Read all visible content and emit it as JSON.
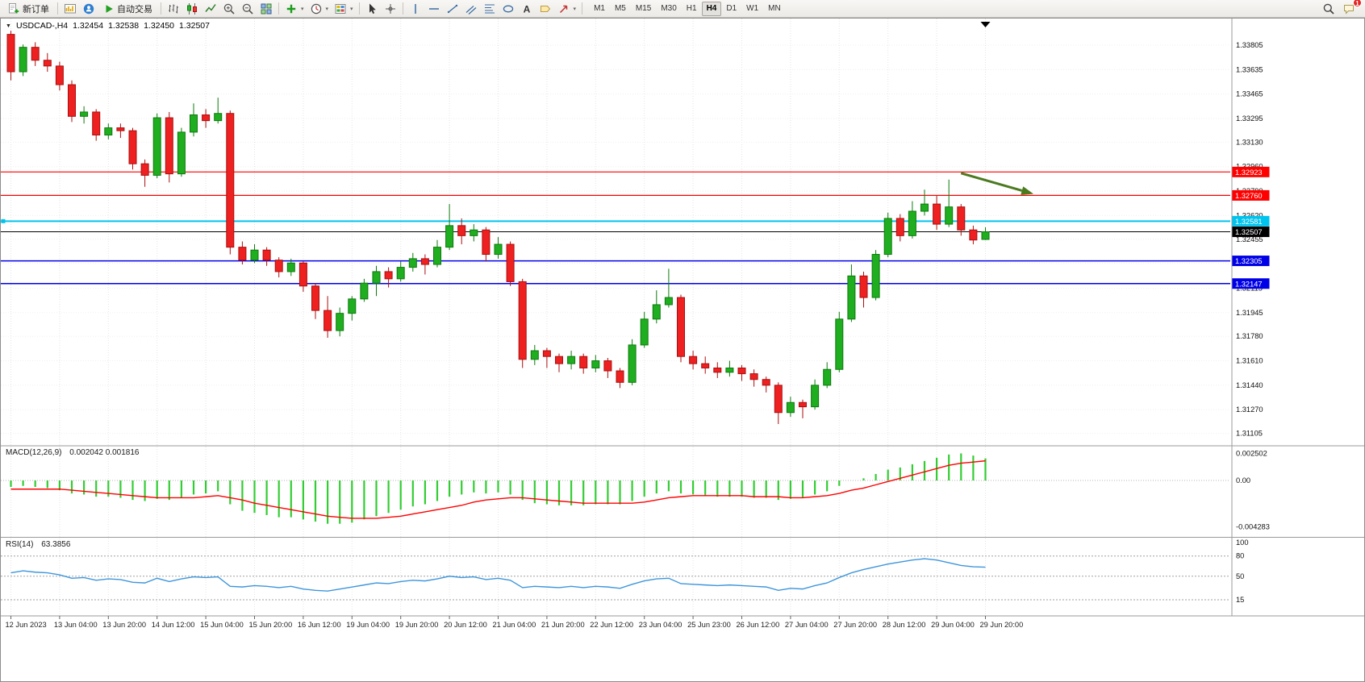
{
  "toolbar": {
    "new_order_label": "新订单",
    "auto_trading_label": "自动交易",
    "timeframes": [
      "M1",
      "M5",
      "M15",
      "M30",
      "H1",
      "H4",
      "D1",
      "W1",
      "MN"
    ],
    "active_timeframe": "H4",
    "notification_badge": "1"
  },
  "chart_header": {
    "symbol_period": "USDCAD-,H4",
    "open": "1.32454",
    "high": "1.32538",
    "low": "1.32450",
    "close": "1.32507"
  },
  "indicator_labels": {
    "macd": "MACD(12,26,9)",
    "macd_values": "0.002042 0.001816",
    "rsi": "RSI(14)",
    "rsi_value": "63.3856"
  },
  "chart_data": [
    {
      "type": "candlestick",
      "title": "USDCAD- H4",
      "x_labels": [
        "12 Jun 2023",
        "13 Jun 04:00",
        "13 Jun 20:00",
        "14 Jun 12:00",
        "15 Jun 04:00",
        "15 Jun 20:00",
        "16 Jun 12:00",
        "19 Jun 04:00",
        "19 Jun 20:00",
        "20 Jun 12:00",
        "21 Jun 04:00",
        "21 Jun 20:00",
        "22 Jun 12:00",
        "23 Jun 04:00",
        "25 Jun 23:00",
        "26 Jun 12:00",
        "27 Jun 04:00",
        "27 Jun 20:00",
        "28 Jun 12:00",
        "29 Jun 04:00",
        "29 Jun 20:00"
      ],
      "candles_per_label": 4,
      "y_axis": {
        "min": 1.3103,
        "max": 1.3399,
        "ticks": [
          1.33805,
          1.33635,
          1.33465,
          1.33295,
          1.3313,
          1.3296,
          1.3279,
          1.3262,
          1.32455,
          1.32285,
          1.32115,
          1.31945,
          1.3178,
          1.3161,
          1.3144,
          1.3127,
          1.31105
        ]
      },
      "hlines": [
        {
          "price": 1.32923,
          "label": "1.32923",
          "color": "#FF0000",
          "width": 1.2
        },
        {
          "price": 1.3276,
          "label": "1.32760",
          "color": "#FF0000",
          "width": 1.2
        },
        {
          "price": 1.32581,
          "label": "1.32581",
          "color": "#00C4EE",
          "width": 2,
          "anchor": true
        },
        {
          "price": 1.32507,
          "label": "1.32507",
          "color": "#000000",
          "width": 1
        },
        {
          "price": 1.32305,
          "label": "1.32305",
          "color": "#0000E6",
          "width": 1.5
        },
        {
          "price": 1.32147,
          "label": "1.32147",
          "color": "#0000E6",
          "width": 1.5
        }
      ],
      "arrow": {
        "x1_frac": 0.781,
        "price1": 1.32915,
        "x2_frac": 0.84,
        "price2": 1.3277,
        "color": "#4B7A1F"
      },
      "colors": {
        "up": "#1FAE1F",
        "up_stroke": "#0C7A0C",
        "down": "#EE2020",
        "down_stroke": "#AA0F0F",
        "grid": "#E4E4E4",
        "bid": "#000000"
      },
      "candles": [
        [
          1.3388,
          1.33905,
          1.3356,
          1.3362
        ],
        [
          1.3362,
          1.3381,
          1.3359,
          1.3379
        ],
        [
          1.3379,
          1.33825,
          1.3366,
          1.337
        ],
        [
          1.337,
          1.3375,
          1.3362,
          1.3366
        ],
        [
          1.3366,
          1.3369,
          1.3349,
          1.3353
        ],
        [
          1.3353,
          1.3356,
          1.3327,
          1.3331
        ],
        [
          1.3331,
          1.3338,
          1.3326,
          1.3334
        ],
        [
          1.3334,
          1.3336,
          1.3314,
          1.3318
        ],
        [
          1.3318,
          1.3326,
          1.3315,
          1.3323
        ],
        [
          1.3323,
          1.3326,
          1.3316,
          1.3321
        ],
        [
          1.3321,
          1.3323,
          1.3294,
          1.3298
        ],
        [
          1.3298,
          1.3301,
          1.3282,
          1.329
        ],
        [
          1.329,
          1.3333,
          1.3288,
          1.333
        ],
        [
          1.333,
          1.3334,
          1.3285,
          1.3291
        ],
        [
          1.3291,
          1.3323,
          1.3289,
          1.332
        ],
        [
          1.332,
          1.334,
          1.3317,
          1.3332
        ],
        [
          1.3332,
          1.3336,
          1.3323,
          1.3328
        ],
        [
          1.3328,
          1.3344,
          1.3326,
          1.3333
        ],
        [
          1.3333,
          1.3335,
          1.3235,
          1.324
        ],
        [
          1.324,
          1.3244,
          1.3228,
          1.3231
        ],
        [
          1.3231,
          1.3242,
          1.3229,
          1.3238
        ],
        [
          1.3238,
          1.324,
          1.3227,
          1.3231
        ],
        [
          1.3231,
          1.3233,
          1.3219,
          1.3223
        ],
        [
          1.3223,
          1.3232,
          1.322,
          1.3229
        ],
        [
          1.3229,
          1.323,
          1.3209,
          1.3213
        ],
        [
          1.3213,
          1.3215,
          1.319,
          1.3196
        ],
        [
          1.3196,
          1.3206,
          1.3177,
          1.3182
        ],
        [
          1.3182,
          1.3198,
          1.3178,
          1.3194
        ],
        [
          1.3194,
          1.3206,
          1.3189,
          1.3204
        ],
        [
          1.3204,
          1.3218,
          1.3202,
          1.3215
        ],
        [
          1.3215,
          1.3227,
          1.3206,
          1.3223
        ],
        [
          1.3223,
          1.3226,
          1.3212,
          1.3218
        ],
        [
          1.3218,
          1.323,
          1.3216,
          1.3226
        ],
        [
          1.3226,
          1.3236,
          1.3223,
          1.3232
        ],
        [
          1.3232,
          1.3235,
          1.3221,
          1.3228
        ],
        [
          1.3228,
          1.3245,
          1.3226,
          1.324
        ],
        [
          1.324,
          1.327,
          1.3238,
          1.3255
        ],
        [
          1.3255,
          1.326,
          1.3242,
          1.3248
        ],
        [
          1.3248,
          1.3256,
          1.3244,
          1.3252
        ],
        [
          1.3252,
          1.3254,
          1.323,
          1.3235
        ],
        [
          1.3235,
          1.3247,
          1.3232,
          1.3242
        ],
        [
          1.3242,
          1.3244,
          1.3213,
          1.3216
        ],
        [
          1.3216,
          1.3218,
          1.3156,
          1.3162
        ],
        [
          1.3162,
          1.3172,
          1.3158,
          1.3168
        ],
        [
          1.3168,
          1.317,
          1.3156,
          1.3164
        ],
        [
          1.3164,
          1.3166,
          1.3153,
          1.3159
        ],
        [
          1.3159,
          1.3168,
          1.3155,
          1.3164
        ],
        [
          1.3164,
          1.3166,
          1.3152,
          1.3156
        ],
        [
          1.3156,
          1.3165,
          1.3153,
          1.3161
        ],
        [
          1.3161,
          1.3163,
          1.3149,
          1.3154
        ],
        [
          1.3154,
          1.3156,
          1.3142,
          1.3146
        ],
        [
          1.3146,
          1.3176,
          1.3144,
          1.3172
        ],
        [
          1.3172,
          1.3195,
          1.317,
          1.319
        ],
        [
          1.319,
          1.321,
          1.3187,
          1.32
        ],
        [
          1.32,
          1.3225,
          1.3198,
          1.3205
        ],
        [
          1.3205,
          1.3207,
          1.316,
          1.3164
        ],
        [
          1.3164,
          1.3168,
          1.3155,
          1.3159
        ],
        [
          1.3159,
          1.3164,
          1.3152,
          1.3156
        ],
        [
          1.3156,
          1.316,
          1.3149,
          1.3153
        ],
        [
          1.3153,
          1.3161,
          1.315,
          1.3156
        ],
        [
          1.3156,
          1.3158,
          1.3147,
          1.3152
        ],
        [
          1.3152,
          1.3155,
          1.3143,
          1.3148
        ],
        [
          1.3148,
          1.315,
          1.3139,
          1.3144
        ],
        [
          1.3144,
          1.3146,
          1.3117,
          1.3125
        ],
        [
          1.3125,
          1.3136,
          1.3122,
          1.3132
        ],
        [
          1.3132,
          1.3134,
          1.3121,
          1.3129
        ],
        [
          1.3129,
          1.3148,
          1.3127,
          1.3144
        ],
        [
          1.3144,
          1.316,
          1.3142,
          1.3155
        ],
        [
          1.3155,
          1.3195,
          1.3153,
          1.319
        ],
        [
          1.319,
          1.3228,
          1.3188,
          1.322
        ],
        [
          1.322,
          1.3223,
          1.3198,
          1.3205
        ],
        [
          1.3205,
          1.3238,
          1.3203,
          1.3235
        ],
        [
          1.3235,
          1.3264,
          1.3233,
          1.326
        ],
        [
          1.326,
          1.3263,
          1.3244,
          1.3248
        ],
        [
          1.3248,
          1.3272,
          1.3246,
          1.3265
        ],
        [
          1.3265,
          1.328,
          1.3262,
          1.327
        ],
        [
          1.327,
          1.3276,
          1.3252,
          1.3256
        ],
        [
          1.3256,
          1.3287,
          1.3254,
          1.3268
        ],
        [
          1.3268,
          1.327,
          1.3248,
          1.3252
        ],
        [
          1.3252,
          1.3255,
          1.3242,
          1.3245
        ],
        [
          1.32454,
          1.32538,
          1.3245,
          1.32507
        ]
      ]
    },
    {
      "type": "macd_histogram",
      "label": "MACD(12,26,9)",
      "values_label": "0.002042 0.001816",
      "current_main": 0.002042,
      "current_signal": 0.001816,
      "y_ticks": [
        {
          "v": 0.002502,
          "label": "0.002502"
        },
        {
          "v": 0,
          "label": "0.00"
        },
        {
          "v": -0.004283,
          "label": "-0.004283"
        }
      ],
      "histogram_color": "#32CD32",
      "signal_color": "#FF0000",
      "histogram": [
        -0.0006,
        -0.0005,
        -0.0006,
        -0.0007,
        -0.0009,
        -0.0012,
        -0.0013,
        -0.0015,
        -0.0015,
        -0.0016,
        -0.0018,
        -0.0019,
        -0.0017,
        -0.0018,
        -0.0016,
        -0.0013,
        -0.0012,
        -0.001,
        -0.0022,
        -0.0028,
        -0.003,
        -0.0032,
        -0.0034,
        -0.0034,
        -0.0036,
        -0.0038,
        -0.004,
        -0.004,
        -0.0039,
        -0.0036,
        -0.0033,
        -0.003,
        -0.0027,
        -0.0024,
        -0.0022,
        -0.0019,
        -0.0015,
        -0.0013,
        -0.0011,
        -0.0012,
        -0.0011,
        -0.0013,
        -0.0018,
        -0.0021,
        -0.0022,
        -0.0023,
        -0.0023,
        -0.0023,
        -0.0022,
        -0.0022,
        -0.0022,
        -0.0019,
        -0.0015,
        -0.0012,
        -0.001,
        -0.0012,
        -0.0013,
        -0.0014,
        -0.0015,
        -0.0015,
        -0.0015,
        -0.0016,
        -0.0016,
        -0.0018,
        -0.0017,
        -0.0016,
        -0.0013,
        -0.001,
        -0.0005,
        0.0,
        0.0002,
        0.0006,
        0.001,
        0.0012,
        0.0015,
        0.0018,
        0.0021,
        0.0024,
        0.0025,
        0.0023,
        0.002042
      ],
      "signal": [
        -0.0008,
        -0.0008,
        -0.0008,
        -0.0008,
        -0.0008,
        -0.0009,
        -0.001,
        -0.0011,
        -0.0012,
        -0.0013,
        -0.0014,
        -0.0015,
        -0.0016,
        -0.0016,
        -0.0016,
        -0.0016,
        -0.0015,
        -0.0014,
        -0.0016,
        -0.0018,
        -0.0021,
        -0.0023,
        -0.0025,
        -0.0027,
        -0.0029,
        -0.0031,
        -0.0033,
        -0.0034,
        -0.0035,
        -0.0035,
        -0.0035,
        -0.0034,
        -0.0033,
        -0.0031,
        -0.0029,
        -0.0027,
        -0.0025,
        -0.0023,
        -0.002,
        -0.0018,
        -0.0017,
        -0.0016,
        -0.0016,
        -0.0017,
        -0.0018,
        -0.0019,
        -0.002,
        -0.0021,
        -0.0021,
        -0.0021,
        -0.0021,
        -0.0021,
        -0.002,
        -0.0018,
        -0.0016,
        -0.0015,
        -0.0014,
        -0.0014,
        -0.0014,
        -0.0014,
        -0.0014,
        -0.0015,
        -0.0015,
        -0.0015,
        -0.0016,
        -0.0016,
        -0.0015,
        -0.0014,
        -0.0012,
        -0.0009,
        -0.0007,
        -0.0004,
        -0.0001,
        0.0002,
        0.0005,
        0.0008,
        0.0011,
        0.0014,
        0.0016,
        0.0017,
        0.001816
      ]
    },
    {
      "type": "rsi_line",
      "label": "RSI(14)",
      "value": 63.3856,
      "levels": [
        80,
        50,
        15
      ],
      "y_ticks": [
        100,
        80,
        50,
        15
      ],
      "line_color": "#3E96DC",
      "values": [
        55,
        58,
        56,
        55,
        52,
        47,
        48,
        44,
        46,
        45,
        41,
        40,
        47,
        42,
        46,
        49,
        48,
        49,
        35,
        34,
        36,
        35,
        33,
        35,
        31,
        29,
        28,
        31,
        34,
        37,
        40,
        39,
        42,
        44,
        43,
        46,
        50,
        48,
        49,
        45,
        47,
        44,
        33,
        35,
        34,
        33,
        35,
        33,
        35,
        34,
        32,
        38,
        43,
        46,
        47,
        39,
        38,
        37,
        36,
        37,
        36,
        35,
        34,
        29,
        32,
        31,
        36,
        40,
        48,
        55,
        60,
        64,
        68,
        71,
        74,
        76,
        74,
        70,
        66,
        64,
        63.3856
      ]
    }
  ]
}
